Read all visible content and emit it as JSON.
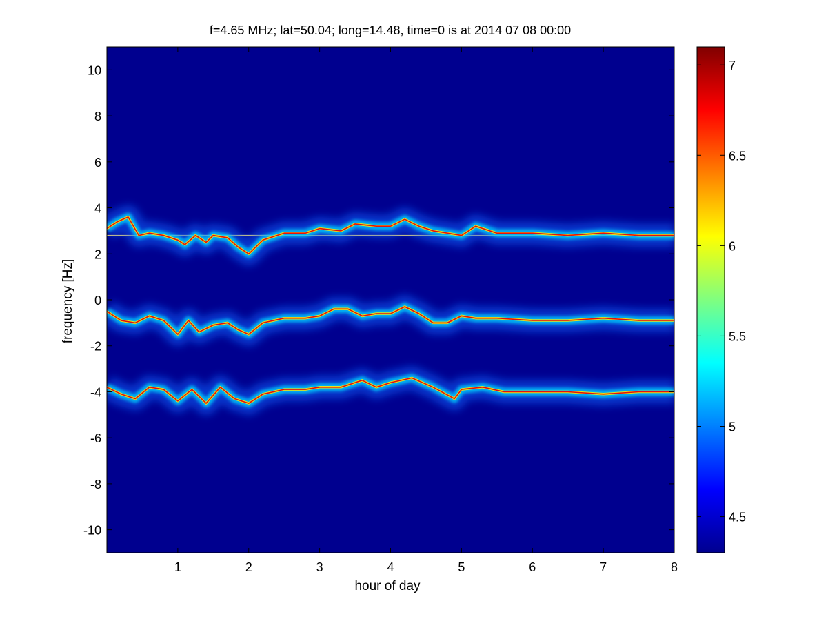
{
  "chart_data": {
    "type": "heatmap",
    "title": "f=4.65 MHz;  lat=50.04; long=14.48, time=0 is at 2014 07 08 00:00",
    "xlabel": "hour of day",
    "ylabel": "frequency [Hz]",
    "xlim": [
      0,
      8
    ],
    "ylim": [
      -11,
      11
    ],
    "x_ticks": [
      1,
      2,
      3,
      4,
      5,
      6,
      7,
      8
    ],
    "y_ticks": [
      10,
      8,
      6,
      4,
      2,
      0,
      -2,
      -4,
      -6,
      -8,
      -10
    ],
    "colorbar": {
      "range": [
        4.3,
        7.1
      ],
      "ticks": [
        7,
        6.5,
        6,
        5.5,
        5,
        4.5
      ],
      "colormap": "jet"
    },
    "background_color": "#00008F",
    "reference_line": {
      "frequency_hz": 2.8,
      "color": "#f3d36b"
    },
    "traces": [
      {
        "band": "upper",
        "hours": [
          0.0,
          0.15,
          0.3,
          0.45,
          0.6,
          0.8,
          1.0,
          1.1,
          1.25,
          1.4,
          1.5,
          1.7,
          1.85,
          2.0,
          2.2,
          2.5,
          2.8,
          3.0,
          3.3,
          3.5,
          3.8,
          4.0,
          4.2,
          4.4,
          4.6,
          4.8,
          5.0,
          5.2,
          5.5,
          6.0,
          6.5,
          7.0,
          7.5,
          8.0
        ],
        "freq_hz": [
          3.1,
          3.4,
          3.6,
          2.8,
          2.9,
          2.8,
          2.6,
          2.4,
          2.8,
          2.5,
          2.8,
          2.7,
          2.3,
          2.0,
          2.6,
          2.9,
          2.9,
          3.1,
          3.0,
          3.3,
          3.2,
          3.2,
          3.5,
          3.2,
          3.0,
          2.9,
          2.8,
          3.2,
          2.9,
          2.9,
          2.8,
          2.9,
          2.8,
          2.8
        ]
      },
      {
        "band": "middle",
        "hours": [
          0.0,
          0.2,
          0.4,
          0.6,
          0.8,
          1.0,
          1.15,
          1.3,
          1.5,
          1.7,
          1.85,
          2.0,
          2.2,
          2.5,
          2.8,
          3.0,
          3.2,
          3.4,
          3.6,
          3.8,
          4.0,
          4.2,
          4.4,
          4.6,
          4.8,
          5.0,
          5.2,
          5.5,
          6.0,
          6.5,
          7.0,
          7.5,
          8.0
        ],
        "freq_hz": [
          -0.5,
          -0.9,
          -1.0,
          -0.7,
          -0.9,
          -1.5,
          -0.9,
          -1.4,
          -1.1,
          -1.0,
          -1.3,
          -1.5,
          -1.0,
          -0.8,
          -0.8,
          -0.7,
          -0.4,
          -0.4,
          -0.7,
          -0.6,
          -0.6,
          -0.3,
          -0.6,
          -1.0,
          -1.0,
          -0.7,
          -0.8,
          -0.8,
          -0.9,
          -0.9,
          -0.8,
          -0.9,
          -0.9
        ]
      },
      {
        "band": "lower",
        "hours": [
          0.0,
          0.2,
          0.4,
          0.6,
          0.8,
          1.0,
          1.2,
          1.4,
          1.6,
          1.8,
          2.0,
          2.2,
          2.5,
          2.8,
          3.0,
          3.3,
          3.6,
          3.8,
          4.0,
          4.3,
          4.6,
          4.9,
          5.0,
          5.3,
          5.6,
          6.0,
          6.5,
          7.0,
          7.5,
          8.0
        ],
        "freq_hz": [
          -3.8,
          -4.1,
          -4.3,
          -3.8,
          -3.9,
          -4.4,
          -3.9,
          -4.5,
          -3.8,
          -4.3,
          -4.5,
          -4.1,
          -3.9,
          -3.9,
          -3.8,
          -3.8,
          -3.5,
          -3.8,
          -3.6,
          -3.4,
          -3.8,
          -4.3,
          -3.9,
          -3.8,
          -4.0,
          -4.0,
          -4.0,
          -4.1,
          -4.0,
          -4.0
        ]
      }
    ]
  }
}
